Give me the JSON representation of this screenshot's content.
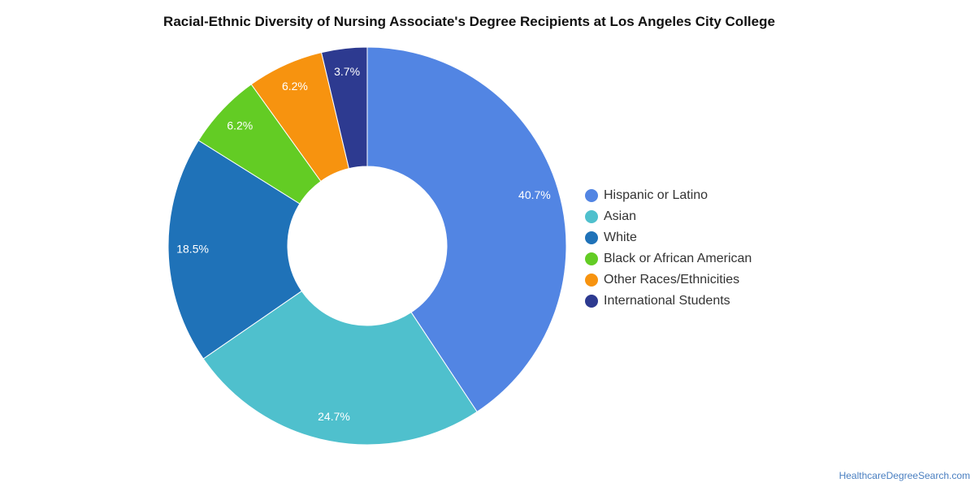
{
  "chart_data": {
    "type": "pie",
    "variant": "donut",
    "title": "Racial-Ethnic Diversity of Nursing Associate's Degree Recipients at Los Angeles City College",
    "legend_position": "right",
    "slices": [
      {
        "label": "Hispanic or Latino",
        "value": 40.7,
        "display": "40.7%",
        "color": "#5285e3"
      },
      {
        "label": "Asian",
        "value": 24.7,
        "display": "24.7%",
        "color": "#4fc0cd"
      },
      {
        "label": "White",
        "value": 18.5,
        "display": "18.5%",
        "color": "#1f72b8"
      },
      {
        "label": "Black or African American",
        "value": 6.2,
        "display": "6.2%",
        "color": "#63cc24"
      },
      {
        "label": "Other Races/Ethnicities",
        "value": 6.2,
        "display": "6.2%",
        "color": "#f7930f"
      },
      {
        "label": "International Students",
        "value": 3.7,
        "display": "3.7%",
        "color": "#2d3a90"
      }
    ]
  },
  "credit": "HealthcareDegreeSearch.com"
}
